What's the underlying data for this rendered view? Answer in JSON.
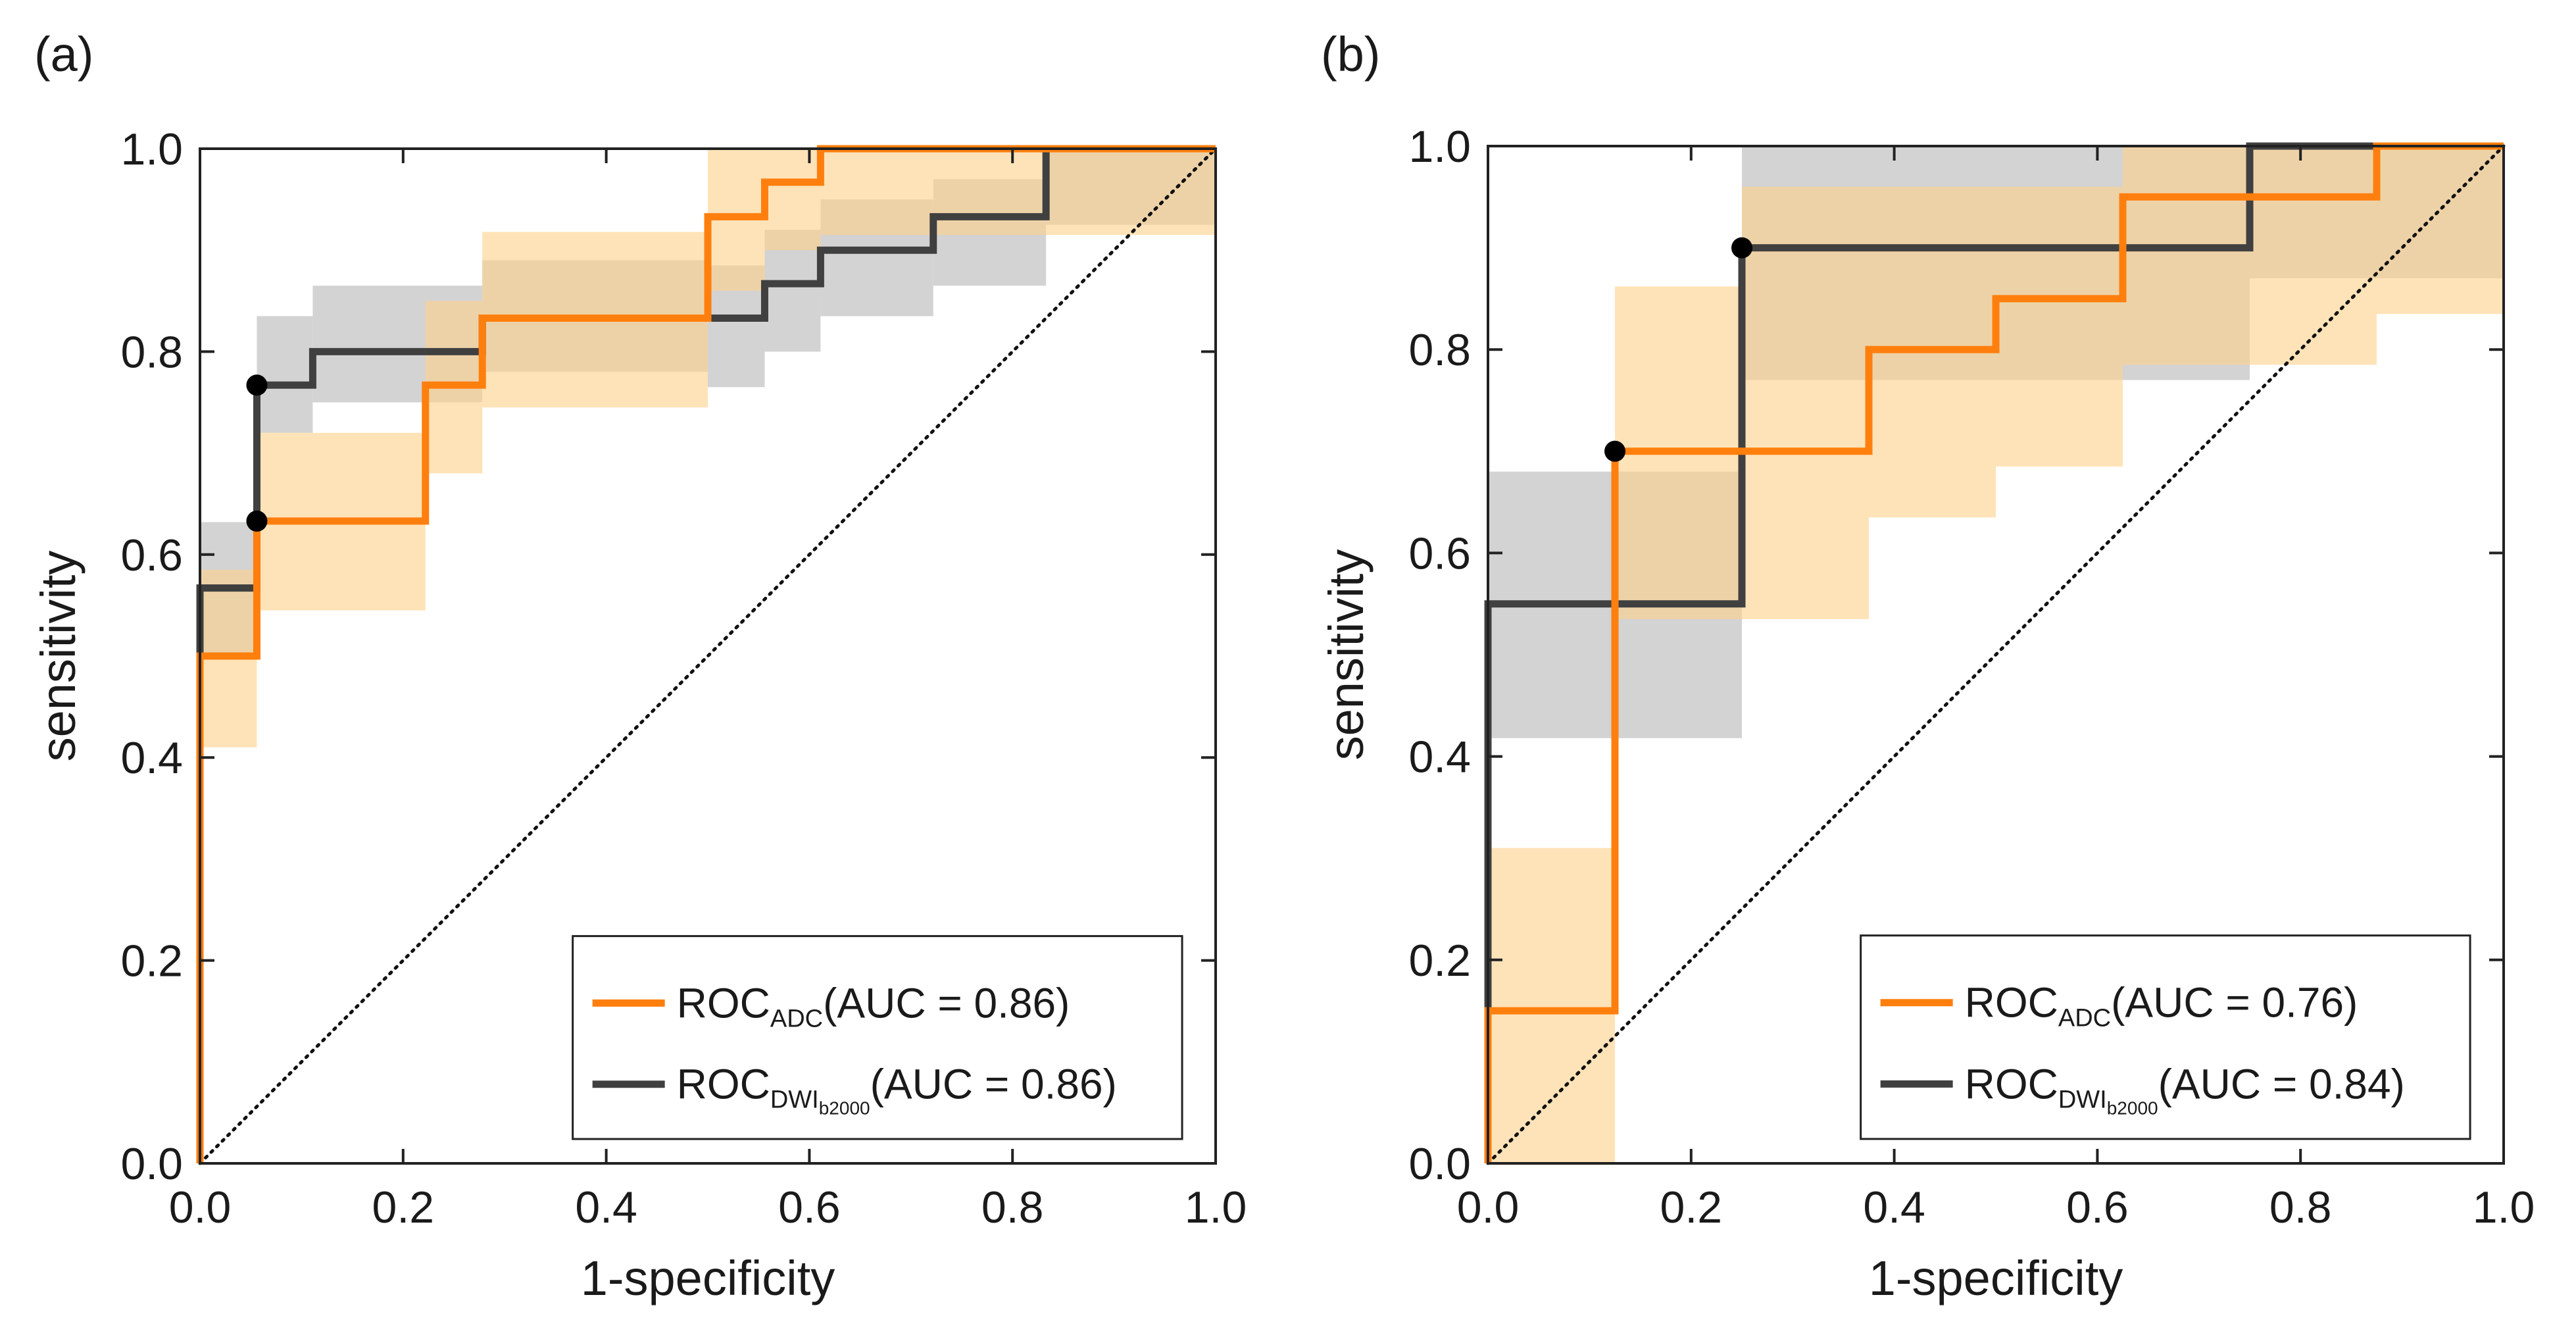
{
  "chart_data": [
    {
      "type": "line",
      "panel_label": "(a)",
      "xlabel": "1-specificity",
      "ylabel": "sensitivity",
      "xlim": [
        0,
        1
      ],
      "ylim": [
        0,
        1
      ],
      "xticks": [
        "0.0",
        "0.2",
        "0.4",
        "0.6",
        "0.8",
        "1.0"
      ],
      "yticks": [
        "0.0",
        "0.2",
        "0.4",
        "0.6",
        "0.8",
        "1.0"
      ],
      "diagonal": true,
      "legend_position": "bottom-right",
      "series": [
        {
          "name": "ROC_ADC",
          "legend_main": "ROC",
          "legend_sub": "ADC",
          "legend_subsub": "",
          "legend_auc": "(AUC = 0.86)",
          "color": "#ff7f0e",
          "band_color": "#ffd28c",
          "x": [
            0,
            0,
            0.056,
            0.056,
            0.222,
            0.222,
            0.278,
            0.278,
            0.5,
            0.5,
            0.556,
            0.556,
            0.611,
            0.611,
            1.0
          ],
          "y": [
            0,
            0.5,
            0.5,
            0.633,
            0.633,
            0.767,
            0.767,
            0.833,
            0.833,
            0.933,
            0.933,
            0.967,
            0.967,
            1.0,
            1.0
          ],
          "band": [
            {
              "x0": 0,
              "x1": 0.056,
              "lo": 0.41,
              "hi": 0.585
            },
            {
              "x0": 0.056,
              "x1": 0.222,
              "lo": 0.545,
              "hi": 0.72
            },
            {
              "x0": 0.222,
              "x1": 0.278,
              "lo": 0.68,
              "hi": 0.85
            },
            {
              "x0": 0.278,
              "x1": 0.5,
              "lo": 0.745,
              "hi": 0.918
            },
            {
              "x0": 0.5,
              "x1": 0.556,
              "lo": 0.86,
              "hi": 1.0
            },
            {
              "x0": 0.556,
              "x1": 0.611,
              "lo": 0.9,
              "hi": 1.0
            },
            {
              "x0": 0.611,
              "x1": 1.0,
              "lo": 0.915,
              "hi": 1.0
            }
          ],
          "operating_point": {
            "x": 0.056,
            "y": 0.633
          }
        },
        {
          "name": "ROC_DWIb2000",
          "legend_main": "ROC",
          "legend_sub": "DWI",
          "legend_subsub": "b2000",
          "legend_auc": "(AUC = 0.86)",
          "color": "#404040",
          "band_color": "#c4c4c4",
          "x": [
            0,
            0,
            0.056,
            0.056,
            0.111,
            0.111,
            0.278,
            0.278,
            0.5,
            0.5,
            0.556,
            0.556,
            0.611,
            0.611,
            0.722,
            0.722,
            0.833,
            0.833,
            1.0
          ],
          "y": [
            0,
            0.567,
            0.567,
            0.767,
            0.767,
            0.8,
            0.8,
            0.833,
            0.833,
            0.833,
            0.833,
            0.867,
            0.867,
            0.9,
            0.9,
            0.933,
            0.933,
            1.0,
            1.0
          ],
          "band": [
            {
              "x0": 0,
              "x1": 0.056,
              "lo": 0.5,
              "hi": 0.632
            },
            {
              "x0": 0.056,
              "x1": 0.111,
              "lo": 0.72,
              "hi": 0.835
            },
            {
              "x0": 0.111,
              "x1": 0.278,
              "lo": 0.75,
              "hi": 0.865
            },
            {
              "x0": 0.278,
              "x1": 0.5,
              "lo": 0.78,
              "hi": 0.89
            },
            {
              "x0": 0.5,
              "x1": 0.556,
              "lo": 0.765,
              "hi": 0.885
            },
            {
              "x0": 0.556,
              "x1": 0.611,
              "lo": 0.8,
              "hi": 0.92
            },
            {
              "x0": 0.611,
              "x1": 0.722,
              "lo": 0.835,
              "hi": 0.95
            },
            {
              "x0": 0.722,
              "x1": 0.833,
              "lo": 0.865,
              "hi": 0.97
            },
            {
              "x0": 0.833,
              "x1": 1.0,
              "lo": 0.925,
              "hi": 1.0
            }
          ],
          "operating_point": {
            "x": 0.056,
            "y": 0.767
          }
        }
      ]
    },
    {
      "type": "line",
      "panel_label": "(b)",
      "xlabel": "1-specificity",
      "ylabel": "sensitivity",
      "xlim": [
        0,
        1
      ],
      "ylim": [
        0,
        1
      ],
      "xticks": [
        "0.0",
        "0.2",
        "0.4",
        "0.6",
        "0.8",
        "1.0"
      ],
      "yticks": [
        "0.0",
        "0.2",
        "0.4",
        "0.6",
        "0.8",
        "1.0"
      ],
      "diagonal": true,
      "legend_position": "bottom-right",
      "series": [
        {
          "name": "ROC_ADC",
          "legend_main": "ROC",
          "legend_sub": "ADC",
          "legend_subsub": "",
          "legend_auc": "(AUC = 0.76)",
          "color": "#ff7f0e",
          "band_color": "#ffd28c",
          "x": [
            0,
            0,
            0.125,
            0.125,
            0.375,
            0.375,
            0.5,
            0.5,
            0.625,
            0.625,
            0.875,
            0.875,
            1.0
          ],
          "y": [
            0,
            0.15,
            0.15,
            0.7,
            0.7,
            0.8,
            0.8,
            0.85,
            0.85,
            0.95,
            0.95,
            1.0,
            1.0
          ],
          "band": [
            {
              "x0": 0,
              "x1": 0.125,
              "lo": 0.0,
              "hi": 0.31
            },
            {
              "x0": 0.125,
              "x1": 0.25,
              "lo": 0.535,
              "hi": 0.862
            },
            {
              "x0": 0.25,
              "x1": 0.375,
              "lo": 0.535,
              "hi": 0.96
            },
            {
              "x0": 0.375,
              "x1": 0.5,
              "lo": 0.635,
              "hi": 0.96
            },
            {
              "x0": 0.5,
              "x1": 0.625,
              "lo": 0.685,
              "hi": 0.96
            },
            {
              "x0": 0.625,
              "x1": 0.875,
              "lo": 0.785,
              "hi": 1.0
            },
            {
              "x0": 0.875,
              "x1": 1.0,
              "lo": 0.835,
              "hi": 1.0
            }
          ],
          "operating_point": {
            "x": 0.125,
            "y": 0.7
          }
        },
        {
          "name": "ROC_DWIb2000",
          "legend_main": "ROC",
          "legend_sub": "DWI",
          "legend_subsub": "b2000",
          "legend_auc": "(AUC = 0.84)",
          "color": "#404040",
          "band_color": "#c4c4c4",
          "x": [
            0,
            0,
            0.25,
            0.25,
            0.75,
            0.75,
            1.0
          ],
          "y": [
            0,
            0.55,
            0.55,
            0.9,
            0.9,
            1.0,
            1.0
          ],
          "band": [
            {
              "x0": 0,
              "x1": 0.25,
              "lo": 0.418,
              "hi": 0.68
            },
            {
              "x0": 0.25,
              "x1": 0.75,
              "lo": 0.77,
              "hi": 1.0
            },
            {
              "x0": 0.75,
              "x1": 1.0,
              "lo": 0.87,
              "hi": 1.0
            }
          ],
          "operating_point": {
            "x": 0.25,
            "y": 0.9
          }
        }
      ]
    }
  ]
}
